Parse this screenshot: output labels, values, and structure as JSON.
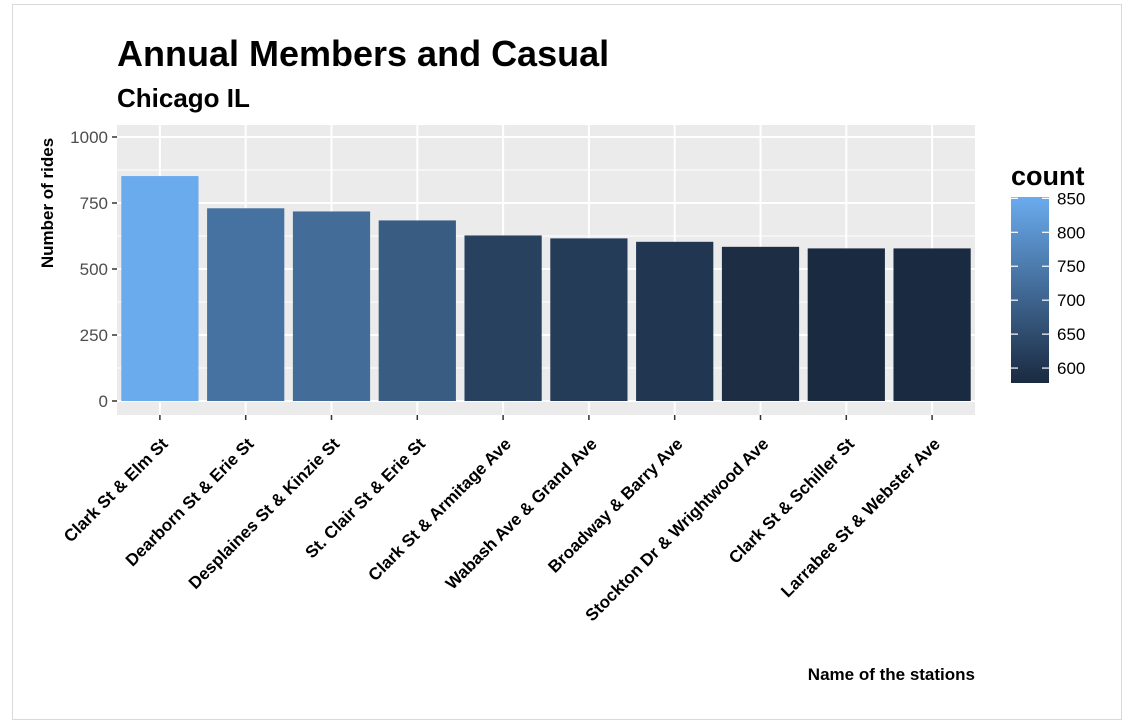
{
  "chart_data": {
    "type": "bar",
    "title": "Annual Members and Casual",
    "subtitle": "Chicago IL",
    "xlabel": "Name of the stations",
    "ylabel": "Number of rides",
    "categories": [
      "Clark St & Elm St",
      "Dearborn St & Erie St",
      "Desplaines St & Kinzie St",
      "St. Clair St & Erie St",
      "Clark St & Armitage Ave",
      "Wabash Ave & Grand Ave",
      "Broadway & Barry Ave",
      "Stockton Dr & Wrightwood Ave",
      "Clark St & Schiller St",
      "Larrabee St & Webster Ave"
    ],
    "values": [
      852,
      730,
      718,
      684,
      627,
      616,
      603,
      584,
      578,
      578
    ],
    "ylim": [
      0,
      1000
    ],
    "yticks": [
      0,
      250,
      500,
      750,
      1000
    ],
    "ytick_labels": [
      "0",
      "250",
      "500",
      "750",
      "1000"
    ],
    "grid": true,
    "legend": {
      "title": "count",
      "placement": "right",
      "breaks": [
        850,
        800,
        750,
        700,
        650,
        600
      ],
      "break_labels": [
        "850",
        "800",
        "750",
        "700",
        "650",
        "600"
      ],
      "range": [
        578,
        852
      ],
      "low_color": "#1a2a40",
      "high_color": "#6aabee"
    },
    "colors": {
      "panel_background": "#ebebeb",
      "gridline": "#ffffff",
      "text": "#000000",
      "tick_text": "#4d4d4d"
    }
  }
}
